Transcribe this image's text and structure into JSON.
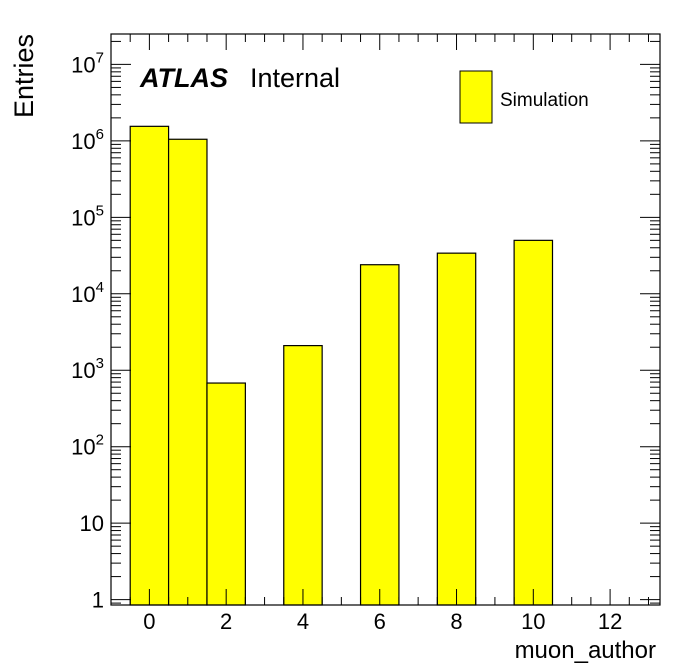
{
  "chart_data": {
    "type": "bar",
    "style": "histogram",
    "bin_width": 1,
    "x_bin_centers": [
      0,
      1,
      2,
      3,
      4,
      5,
      6,
      7,
      8,
      9,
      10,
      11,
      12
    ],
    "values": [
      1550000,
      1050000,
      680,
      0,
      2100,
      0,
      24000,
      0,
      34000,
      0,
      50000,
      0,
      0
    ],
    "xlabel": "muon_author",
    "ylabel": "Entries",
    "xlim": [
      -1,
      13.3
    ],
    "ylim": [
      0.85,
      25000000
    ],
    "y_scale": "log",
    "x_ticks": [
      "0",
      "2",
      "4",
      "6",
      "8",
      "10",
      "12"
    ],
    "x_tick_values": [
      0,
      2,
      4,
      6,
      8,
      10,
      12
    ],
    "y_ticks": [
      {
        "value": 1,
        "base": "1",
        "exp": ""
      },
      {
        "value": 10,
        "base": "10",
        "exp": ""
      },
      {
        "value": 100,
        "base": "10",
        "exp": "2"
      },
      {
        "value": 1000,
        "base": "10",
        "exp": "3"
      },
      {
        "value": 10000,
        "base": "10",
        "exp": "4"
      },
      {
        "value": 100000,
        "base": "10",
        "exp": "5"
      },
      {
        "value": 1000000,
        "base": "10",
        "exp": "6"
      },
      {
        "value": 10000000,
        "base": "10",
        "exp": "7"
      }
    ],
    "fill_color": "#ffff00",
    "line_color": "#000000",
    "atlas_label": "ATLAS",
    "atlas_status": "Internal",
    "legend": {
      "entries": [
        "Simulation"
      ],
      "placement": "top-right"
    }
  }
}
